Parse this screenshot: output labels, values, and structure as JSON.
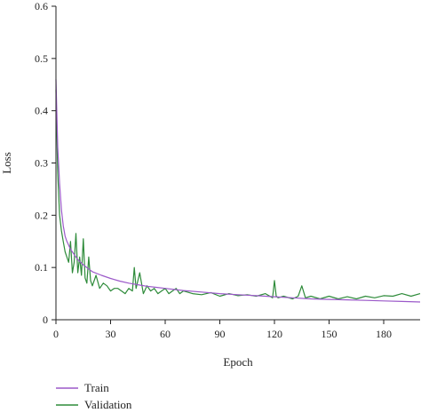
{
  "chart_data": {
    "type": "line",
    "title": "",
    "xlabel": "Epoch",
    "ylabel": "Loss",
    "xlim": [
      0,
      200
    ],
    "ylim": [
      0,
      0.6
    ],
    "xticks": [
      0,
      30,
      60,
      90,
      120,
      150,
      180
    ],
    "yticks": [
      0,
      0.1,
      0.2,
      0.3,
      0.4,
      0.5,
      0.6
    ],
    "grid": false,
    "legend_position": "bottom-left",
    "series": [
      {
        "name": "Train",
        "color": "#9b59c9",
        "x": [
          0,
          1,
          2,
          3,
          4,
          5,
          6,
          8,
          10,
          12,
          15,
          18,
          20,
          25,
          30,
          35,
          40,
          45,
          50,
          55,
          60,
          70,
          80,
          90,
          100,
          110,
          120,
          130,
          140,
          150,
          160,
          170,
          180,
          190,
          200
        ],
        "y": [
          0.46,
          0.33,
          0.26,
          0.21,
          0.18,
          0.16,
          0.15,
          0.135,
          0.125,
          0.115,
          0.105,
          0.097,
          0.092,
          0.085,
          0.079,
          0.074,
          0.07,
          0.067,
          0.064,
          0.062,
          0.06,
          0.056,
          0.053,
          0.05,
          0.048,
          0.046,
          0.044,
          0.042,
          0.04,
          0.039,
          0.038,
          0.037,
          0.036,
          0.035,
          0.034
        ]
      },
      {
        "name": "Validation",
        "color": "#2e8b3a",
        "x": [
          0,
          1,
          2,
          3,
          4,
          5,
          6,
          7,
          8,
          9,
          10,
          11,
          12,
          13,
          14,
          15,
          16,
          17,
          18,
          19,
          20,
          22,
          24,
          26,
          28,
          30,
          32,
          34,
          36,
          38,
          40,
          42,
          43,
          44,
          46,
          48,
          50,
          52,
          54,
          56,
          58,
          60,
          62,
          64,
          66,
          68,
          70,
          75,
          80,
          85,
          90,
          95,
          100,
          105,
          110,
          115,
          119,
          120,
          121,
          122,
          125,
          130,
          133,
          135,
          137,
          140,
          145,
          150,
          155,
          160,
          165,
          170,
          175,
          180,
          185,
          190,
          195,
          200
        ],
        "y": [
          0.44,
          0.28,
          0.2,
          0.17,
          0.15,
          0.13,
          0.12,
          0.11,
          0.15,
          0.09,
          0.11,
          0.165,
          0.09,
          0.12,
          0.085,
          0.155,
          0.08,
          0.07,
          0.12,
          0.075,
          0.065,
          0.085,
          0.06,
          0.07,
          0.065,
          0.055,
          0.06,
          0.06,
          0.055,
          0.05,
          0.06,
          0.055,
          0.1,
          0.06,
          0.09,
          0.05,
          0.065,
          0.055,
          0.06,
          0.05,
          0.055,
          0.06,
          0.05,
          0.055,
          0.06,
          0.05,
          0.055,
          0.05,
          0.048,
          0.052,
          0.045,
          0.05,
          0.046,
          0.048,
          0.045,
          0.05,
          0.042,
          0.075,
          0.045,
          0.042,
          0.045,
          0.04,
          0.045,
          0.065,
          0.042,
          0.045,
          0.04,
          0.045,
          0.04,
          0.044,
          0.04,
          0.045,
          0.042,
          0.046,
          0.045,
          0.05,
          0.045,
          0.05
        ]
      }
    ]
  }
}
